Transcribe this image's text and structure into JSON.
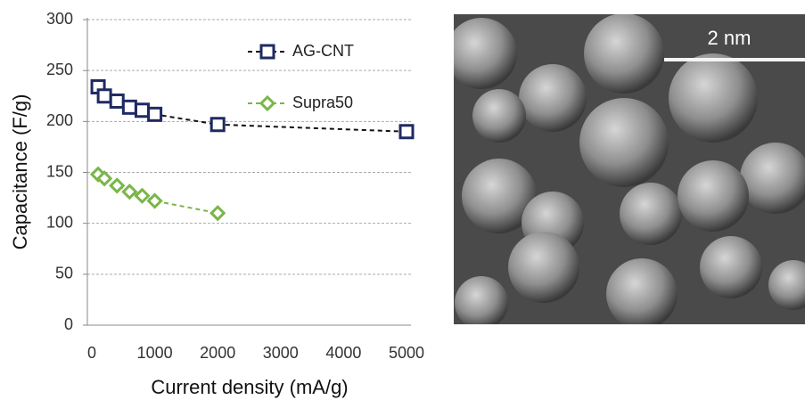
{
  "chart_data": {
    "type": "line",
    "xlabel": "Current density (mA/g)",
    "ylabel": "Capacitance (F/g)",
    "xlim": [
      0,
      5000
    ],
    "xticks": [
      0,
      1000,
      2000,
      3000,
      4000,
      5000
    ],
    "ylim": [
      0,
      300
    ],
    "yticks": [
      0,
      50,
      100,
      150,
      200,
      250,
      300
    ],
    "grid": true,
    "legend": "upper right",
    "series": [
      {
        "name": "AG-CNT",
        "color": "#1f2a63",
        "marker": "square",
        "x": [
          100,
          200,
          400,
          600,
          800,
          1000,
          2000,
          5000
        ],
        "values": [
          234,
          225,
          220,
          214,
          211,
          207,
          197,
          190
        ]
      },
      {
        "name": "Supra50",
        "color": "#7ab648",
        "marker": "diamond",
        "x": [
          100,
          200,
          400,
          600,
          800,
          1000,
          2000
        ],
        "values": [
          148,
          144,
          137,
          131,
          127,
          122,
          110
        ]
      }
    ]
  },
  "image": {
    "scale_label": "2 nm"
  }
}
